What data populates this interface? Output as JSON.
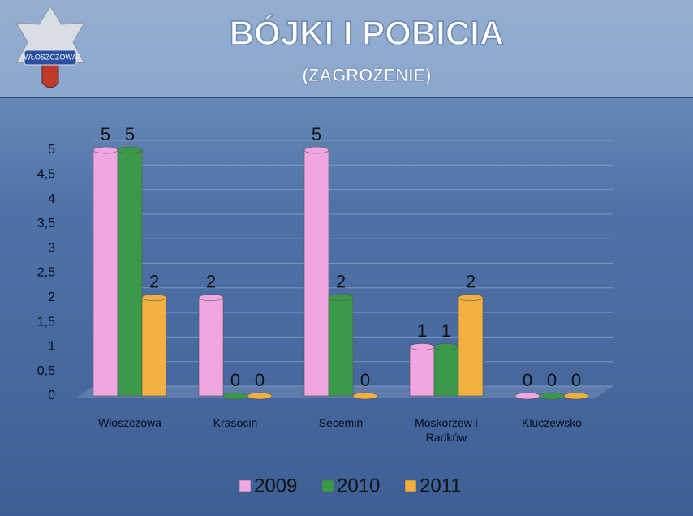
{
  "logo_text": "WŁOSZCZOWA",
  "chart_data": {
    "type": "bar",
    "title": "BÓJKI I POBICIA",
    "subtitle": "(ZAGROŻENIE)",
    "categories": [
      "Włoszczowa",
      "Krasocin",
      "Secemin",
      "Moskorzew i Radków",
      "Kluczewsko"
    ],
    "series": [
      {
        "name": "2009",
        "color": "#f0a6e0",
        "values": [
          5,
          2,
          5,
          1,
          0
        ]
      },
      {
        "name": "2010",
        "color": "#3a9a4a",
        "values": [
          5,
          0,
          2,
          1,
          0
        ]
      },
      {
        "name": "2011",
        "color": "#f2b040",
        "values": [
          2,
          0,
          0,
          2,
          0
        ]
      }
    ],
    "ylim": [
      0,
      5
    ],
    "yticks": [
      0,
      {
        "value": 0.5,
        "label": "0,5"
      },
      1,
      {
        "value": 1.5,
        "label": "1,5"
      },
      2,
      {
        "value": 2.5,
        "label": "2,5"
      },
      3,
      {
        "value": 3.5,
        "label": "3,5"
      },
      4,
      {
        "value": 4.5,
        "label": "4,5"
      },
      5
    ],
    "grid": true,
    "legend": "bottom"
  }
}
